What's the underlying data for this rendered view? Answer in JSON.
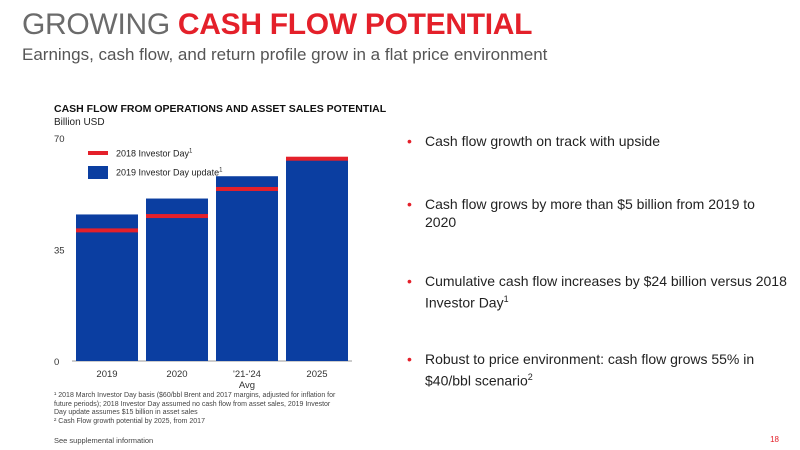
{
  "header": {
    "title_part1": "GROWING ",
    "title_part2": "CASH FLOW POTENTIAL",
    "subtitle": "Earnings, cash flow, and return profile grow in a flat price environment"
  },
  "chart_data": {
    "type": "bar",
    "title": "CASH FLOW FROM OPERATIONS AND ASSET SALES POTENTIAL",
    "ylabel": "Billion USD",
    "ylim": [
      0,
      70
    ],
    "yticks": [
      "70",
      "35",
      "0"
    ],
    "categories": [
      "2019",
      "2020",
      "'21-'24\nAvg",
      "2025"
    ],
    "category_labels": [
      [
        "2019"
      ],
      [
        "2020"
      ],
      [
        "'21-'24",
        "Avg"
      ],
      [
        "2025"
      ]
    ],
    "grid": false,
    "legend_position": "top-left",
    "series": [
      {
        "name": "2019 Investor Day update",
        "name_sup": "1",
        "type": "bar",
        "color": "#0b3ea1",
        "values": [
          46,
          51,
          58,
          64
        ]
      },
      {
        "name": "2018 Investor Day",
        "name_sup": "1",
        "type": "marker",
        "color": "#e4202a",
        "values": [
          41,
          45.5,
          54,
          63.5
        ]
      }
    ]
  },
  "bullets": [
    {
      "text": "Cash flow growth on track with upside",
      "sup": ""
    },
    {
      "text": "Cash flow grows by more than $5 billion from 2019 to 2020",
      "sup": ""
    },
    {
      "text": "Cumulative cash flow increases by $24 billion versus 2018 Investor Day",
      "sup": "1"
    },
    {
      "text": "Robust to price environment: cash flow grows 55% in $40/bbl scenario",
      "sup": "2"
    }
  ],
  "footnotes": {
    "note1": "¹ 2018 March Investor Day basis ($60/bbl Brent and 2017 margins, adjusted for inflation for future periods); 2018 Investor Day assumed no cash flow from asset sales, 2019 Investor Day update assumes $15 billion in asset sales",
    "note2": "² Cash Flow growth potential by 2025, from 2017",
    "supplemental": "See supplemental information"
  },
  "page_number": "18",
  "colors": {
    "accent": "#e4202a",
    "bar": "#0b3ea1",
    "title_gray": "#6b6b6b"
  }
}
